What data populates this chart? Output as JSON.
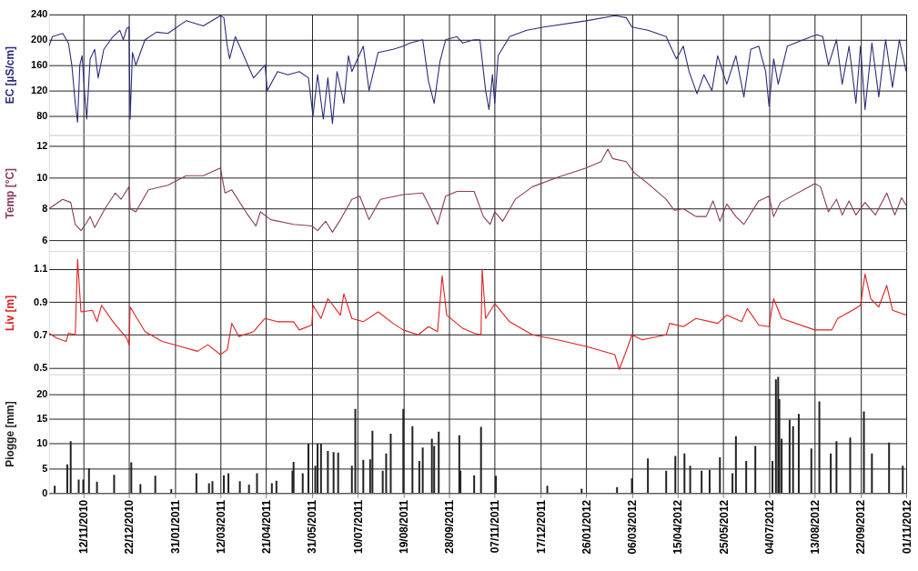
{
  "chart_data": [
    {
      "type": "line",
      "ylabel": "EC [µS/cm]",
      "xlim": [
        "2010-10-13",
        "2012-11-01"
      ],
      "ylim": [
        50,
        240
      ],
      "yticks": [
        80,
        120,
        160,
        200,
        240
      ],
      "grid": true,
      "tick_labels": "y",
      "xticks": [
        {
          "value": "2010-11-12",
          "label": null
        },
        {
          "value": "2010-12-22",
          "label": null
        },
        {
          "value": "2011-01-31",
          "label": null
        },
        {
          "value": "2011-03-12",
          "label": null
        },
        {
          "value": "2011-04-21",
          "label": null
        },
        {
          "value": "2011-05-31",
          "label": null
        },
        {
          "value": "2011-07-10",
          "label": null
        },
        {
          "value": "2011-08-19",
          "label": null
        },
        {
          "value": "2011-09-28",
          "label": null
        },
        {
          "value": "2011-11-07",
          "label": null
        },
        {
          "value": "2011-12-17",
          "label": null
        },
        {
          "value": "2012-01-26",
          "label": null
        },
        {
          "value": "2012-03-06",
          "label": null
        },
        {
          "value": "2012-04-15",
          "label": null
        },
        {
          "value": "2012-05-25",
          "label": null
        },
        {
          "value": "2012-07-04",
          "label": null
        },
        {
          "value": "2012-08-13",
          "label": null
        },
        {
          "value": "2012-09-22",
          "label": null
        },
        {
          "value": "2012-11-01",
          "label": null
        }
      ],
      "series": [
        {
          "color": "#2b2d7c",
          "x": [
            "2010-10-13",
            "2010-10-16",
            "2010-10-25",
            "2010-10-30",
            "2010-11-02",
            "2010-11-05",
            "2010-11-07",
            "2010-11-09",
            "2010-11-11",
            "2010-11-13",
            "2010-11-15",
            "2010-11-18",
            "2010-11-22",
            "2010-11-25",
            "2010-11-30",
            "2010-12-08",
            "2010-12-14",
            "2010-12-17",
            "2010-12-20",
            "2010-12-22",
            "2010-12-23",
            "2010-12-25",
            "2010-12-28",
            "2011-01-05",
            "2011-01-15",
            "2011-01-25",
            "2011-02-10",
            "2011-02-25",
            "2011-03-12",
            "2011-03-15",
            "2011-03-18",
            "2011-03-20",
            "2011-03-25",
            "2011-03-30",
            "2011-04-05",
            "2011-04-10",
            "2011-04-20",
            "2011-04-22",
            "2011-05-01",
            "2011-05-10",
            "2011-05-20",
            "2011-05-28",
            "2011-06-01",
            "2011-06-05",
            "2011-06-10",
            "2011-06-14",
            "2011-06-18",
            "2011-06-22",
            "2011-06-28",
            "2011-07-02",
            "2011-07-05",
            "2011-07-15",
            "2011-07-20",
            "2011-07-28",
            "2011-08-10",
            "2011-08-19",
            "2011-08-25",
            "2011-09-05",
            "2011-09-10",
            "2011-09-15",
            "2011-09-20",
            "2011-09-25",
            "2011-10-05",
            "2011-10-10",
            "2011-10-20",
            "2011-10-25",
            "2011-10-30",
            "2011-11-02",
            "2011-11-05",
            "2011-11-07",
            "2011-11-10",
            "2011-11-20",
            "2011-12-05",
            "2011-12-20",
            "2012-01-26",
            "2012-02-20",
            "2012-03-01",
            "2012-03-06",
            "2012-03-20",
            "2012-04-05",
            "2012-04-10",
            "2012-04-14",
            "2012-04-20",
            "2012-04-25",
            "2012-05-02",
            "2012-05-08",
            "2012-05-15",
            "2012-05-20",
            "2012-05-28",
            "2012-06-05",
            "2012-06-12",
            "2012-06-18",
            "2012-06-25",
            "2012-07-01",
            "2012-07-04",
            "2012-07-08",
            "2012-07-12",
            "2012-07-20",
            "2012-08-10",
            "2012-08-15",
            "2012-08-20",
            "2012-08-25",
            "2012-09-01",
            "2012-09-06",
            "2012-09-12",
            "2012-09-18",
            "2012-09-22",
            "2012-09-26",
            "2012-10-02",
            "2012-10-08",
            "2012-10-14",
            "2012-10-20",
            "2012-10-26",
            "2012-11-01"
          ],
          "values": [
            190,
            205,
            210,
            195,
            160,
            100,
            70,
            160,
            175,
            120,
            75,
            170,
            185,
            140,
            185,
            205,
            215,
            200,
            218,
            220,
            75,
            180,
            160,
            200,
            212,
            210,
            230,
            222,
            238,
            235,
            190,
            170,
            205,
            185,
            160,
            140,
            160,
            120,
            150,
            145,
            150,
            140,
            80,
            145,
            75,
            140,
            68,
            150,
            100,
            175,
            150,
            190,
            120,
            180,
            185,
            190,
            195,
            200,
            135,
            100,
            165,
            200,
            205,
            195,
            200,
            200,
            120,
            90,
            145,
            100,
            175,
            205,
            215,
            220,
            230,
            238,
            235,
            220,
            215,
            205,
            185,
            170,
            190,
            150,
            115,
            145,
            120,
            175,
            130,
            175,
            110,
            185,
            190,
            150,
            95,
            170,
            130,
            190,
            205,
            208,
            205,
            160,
            200,
            130,
            190,
            100,
            190,
            90,
            195,
            110,
            200,
            125,
            200,
            150
          ]
        }
      ]
    },
    {
      "type": "line",
      "ylabel": "Temp [°C]",
      "xlim": [
        "2010-10-13",
        "2012-11-01"
      ],
      "ylim": [
        5.3,
        12.7
      ],
      "yticks": [
        6,
        8,
        10,
        12
      ],
      "grid": true,
      "tick_labels": "y",
      "xticks": [
        {
          "value": "2010-11-12",
          "label": null
        },
        {
          "value": "2010-12-22",
          "label": null
        },
        {
          "value": "2011-01-31",
          "label": null
        },
        {
          "value": "2011-03-12",
          "label": null
        },
        {
          "value": "2011-04-21",
          "label": null
        },
        {
          "value": "2011-05-31",
          "label": null
        },
        {
          "value": "2011-07-10",
          "label": null
        },
        {
          "value": "2011-08-19",
          "label": null
        },
        {
          "value": "2011-09-28",
          "label": null
        },
        {
          "value": "2011-11-07",
          "label": null
        },
        {
          "value": "2011-12-17",
          "label": null
        },
        {
          "value": "2012-01-26",
          "label": null
        },
        {
          "value": "2012-03-06",
          "label": null
        },
        {
          "value": "2012-04-15",
          "label": null
        },
        {
          "value": "2012-05-25",
          "label": null
        },
        {
          "value": "2012-07-04",
          "label": null
        },
        {
          "value": "2012-08-13",
          "label": null
        },
        {
          "value": "2012-09-22",
          "label": null
        },
        {
          "value": "2012-11-01",
          "label": null
        }
      ],
      "series": [
        {
          "color": "#8b3a62",
          "x": [
            "2010-10-13",
            "2010-10-25",
            "2010-11-01",
            "2010-11-05",
            "2010-11-10",
            "2010-11-14",
            "2010-11-18",
            "2010-11-22",
            "2010-12-01",
            "2010-12-10",
            "2010-12-15",
            "2010-12-22",
            "2010-12-23",
            "2010-12-28",
            "2011-01-08",
            "2011-01-25",
            "2011-02-10",
            "2011-02-25",
            "2011-03-12",
            "2011-03-16",
            "2011-03-22",
            "2011-04-05",
            "2011-04-12",
            "2011-04-16",
            "2011-04-25",
            "2011-05-15",
            "2011-05-31",
            "2011-06-05",
            "2011-06-12",
            "2011-06-18",
            "2011-06-25",
            "2011-07-05",
            "2011-07-12",
            "2011-07-20",
            "2011-07-30",
            "2011-08-19",
            "2011-09-05",
            "2011-09-12",
            "2011-09-18",
            "2011-09-25",
            "2011-10-05",
            "2011-10-20",
            "2011-10-28",
            "2011-11-03",
            "2011-11-07",
            "2011-11-14",
            "2011-11-25",
            "2011-12-10",
            "2012-01-01",
            "2012-01-26",
            "2012-02-08",
            "2012-02-14",
            "2012-02-18",
            "2012-03-01",
            "2012-03-08",
            "2012-03-20",
            "2012-04-05",
            "2012-04-12",
            "2012-04-20",
            "2012-05-01",
            "2012-05-10",
            "2012-05-16",
            "2012-05-22",
            "2012-05-28",
            "2012-06-05",
            "2012-06-12",
            "2012-06-25",
            "2012-07-04",
            "2012-07-08",
            "2012-07-14",
            "2012-08-13",
            "2012-08-18",
            "2012-08-25",
            "2012-09-01",
            "2012-09-06",
            "2012-09-12",
            "2012-09-18",
            "2012-09-26",
            "2012-10-05",
            "2012-10-15",
            "2012-10-22",
            "2012-10-28",
            "2012-11-01"
          ],
          "values": [
            8.0,
            8.6,
            8.4,
            7.0,
            6.6,
            7.0,
            7.5,
            6.8,
            8.0,
            9.0,
            8.6,
            9.4,
            8.0,
            7.8,
            9.2,
            9.5,
            10.1,
            10.1,
            10.6,
            9.0,
            9.2,
            7.6,
            6.9,
            7.8,
            7.3,
            7.0,
            6.9,
            6.6,
            7.2,
            6.5,
            7.3,
            8.6,
            8.8,
            7.3,
            8.6,
            8.9,
            9.0,
            8.0,
            7.0,
            8.8,
            9.1,
            9.1,
            7.5,
            7.0,
            7.8,
            7.2,
            8.6,
            9.4,
            10.0,
            10.6,
            11.0,
            11.8,
            11.2,
            11.0,
            10.3,
            9.6,
            8.6,
            7.9,
            8.0,
            7.5,
            7.5,
            8.5,
            7.2,
            8.3,
            7.5,
            7.0,
            8.5,
            8.8,
            7.5,
            8.4,
            9.6,
            9.4,
            7.8,
            8.6,
            7.6,
            8.5,
            7.6,
            8.4,
            7.6,
            9.0,
            7.6,
            8.7,
            8.2
          ]
        }
      ]
    },
    {
      "type": "line",
      "ylabel": "Liv [m]",
      "xlim": [
        "2010-10-13",
        "2012-11-01"
      ],
      "ylim": [
        0.46,
        1.21
      ],
      "yticks": [
        0.5,
        0.7,
        0.9,
        1.1
      ],
      "grid": true,
      "tick_labels": "y",
      "xticks": [
        {
          "value": "2010-11-12",
          "label": null
        },
        {
          "value": "2010-12-22",
          "label": null
        },
        {
          "value": "2011-01-31",
          "label": null
        },
        {
          "value": "2011-03-12",
          "label": null
        },
        {
          "value": "2011-04-21",
          "label": null
        },
        {
          "value": "2011-05-31",
          "label": null
        },
        {
          "value": "2011-07-10",
          "label": null
        },
        {
          "value": "2011-08-19",
          "label": null
        },
        {
          "value": "2011-09-28",
          "label": null
        },
        {
          "value": "2011-11-07",
          "label": null
        },
        {
          "value": "2011-12-17",
          "label": null
        },
        {
          "value": "2012-01-26",
          "label": null
        },
        {
          "value": "2012-03-06",
          "label": null
        },
        {
          "value": "2012-04-15",
          "label": null
        },
        {
          "value": "2012-05-25",
          "label": null
        },
        {
          "value": "2012-07-04",
          "label": null
        },
        {
          "value": "2012-08-13",
          "label": null
        },
        {
          "value": "2012-09-22",
          "label": null
        },
        {
          "value": "2012-11-01",
          "label": null
        }
      ],
      "series": [
        {
          "color": "#e02020",
          "x": [
            "2010-10-13",
            "2010-10-20",
            "2010-10-28",
            "2010-10-30",
            "2010-11-05",
            "2010-11-07",
            "2010-11-10",
            "2010-11-20",
            "2010-11-24",
            "2010-11-28",
            "2010-12-08",
            "2010-12-20",
            "2010-12-22",
            "2010-12-23",
            "2011-01-05",
            "2011-01-20",
            "2011-02-05",
            "2011-02-20",
            "2011-03-01",
            "2011-03-12",
            "2011-03-18",
            "2011-03-22",
            "2011-03-28",
            "2011-04-10",
            "2011-04-20",
            "2011-05-01",
            "2011-05-15",
            "2011-05-20",
            "2011-05-31",
            "2011-06-01",
            "2011-06-08",
            "2011-06-14",
            "2011-06-25",
            "2011-06-28",
            "2011-07-05",
            "2011-07-15",
            "2011-07-28",
            "2011-08-10",
            "2011-08-19",
            "2011-09-01",
            "2011-09-10",
            "2011-09-18",
            "2011-09-22",
            "2011-09-26",
            "2011-10-10",
            "2011-10-20",
            "2011-10-26",
            "2011-10-27",
            "2011-10-30",
            "2011-11-07",
            "2011-11-20",
            "2011-12-10",
            "2012-01-01",
            "2012-01-26",
            "2012-02-20",
            "2012-02-24",
            "2012-03-02",
            "2012-03-06",
            "2012-03-15",
            "2012-04-05",
            "2012-04-08",
            "2012-04-20",
            "2012-05-01",
            "2012-05-20",
            "2012-05-28",
            "2012-06-10",
            "2012-06-15",
            "2012-06-25",
            "2012-07-04",
            "2012-07-08",
            "2012-07-15",
            "2012-08-13",
            "2012-08-28",
            "2012-09-02",
            "2012-09-15",
            "2012-09-22",
            "2012-09-26",
            "2012-10-01",
            "2012-10-08",
            "2012-10-15",
            "2012-10-20",
            "2012-11-01"
          ],
          "values": [
            0.71,
            0.68,
            0.66,
            0.71,
            0.7,
            1.16,
            0.84,
            0.85,
            0.78,
            0.88,
            0.78,
            0.68,
            0.64,
            0.87,
            0.72,
            0.66,
            0.63,
            0.6,
            0.64,
            0.58,
            0.61,
            0.77,
            0.69,
            0.72,
            0.8,
            0.78,
            0.78,
            0.73,
            0.76,
            0.88,
            0.8,
            0.92,
            0.82,
            0.95,
            0.8,
            0.78,
            0.84,
            0.77,
            0.73,
            0.7,
            0.75,
            0.72,
            1.06,
            0.82,
            0.74,
            0.71,
            0.7,
            1.1,
            0.8,
            0.89,
            0.78,
            0.7,
            0.67,
            0.63,
            0.58,
            0.49,
            0.62,
            0.7,
            0.67,
            0.7,
            0.77,
            0.75,
            0.8,
            0.77,
            0.82,
            0.78,
            0.86,
            0.76,
            0.75,
            0.92,
            0.8,
            0.73,
            0.73,
            0.8,
            0.85,
            0.88,
            1.07,
            0.92,
            0.87,
            1.0,
            0.85,
            0.82
          ]
        }
      ]
    },
    {
      "type": "bar",
      "ylabel": "Piogge [mm]",
      "xlim": [
        "2010-10-13",
        "2012-11-01"
      ],
      "ylim": [
        0,
        24
      ],
      "yticks": [
        0,
        5,
        10,
        15,
        20
      ],
      "grid": true,
      "xticks": [
        {
          "value": "2010-11-12",
          "label": "12/11/2010"
        },
        {
          "value": "2010-12-22",
          "label": "22/12/2010"
        },
        {
          "value": "2011-01-31",
          "label": "31/01/2011"
        },
        {
          "value": "2011-03-12",
          "label": "12/03/2011"
        },
        {
          "value": "2011-04-21",
          "label": "21/04/2011"
        },
        {
          "value": "2011-05-31",
          "label": "31/05/2011"
        },
        {
          "value": "2011-07-10",
          "label": "10/07/2011"
        },
        {
          "value": "2011-08-19",
          "label": "19/08/2011"
        },
        {
          "value": "2011-09-28",
          "label": "28/09/2011"
        },
        {
          "value": "2011-11-07",
          "label": "07/11/2011"
        },
        {
          "value": "2011-12-17",
          "label": "17/12/2011"
        },
        {
          "value": "2012-01-26",
          "label": "26/01/2012"
        },
        {
          "value": "2012-03-06",
          "label": "06/03/2012"
        },
        {
          "value": "2012-04-15",
          "label": "15/04/2012"
        },
        {
          "value": "2012-05-25",
          "label": "25/05/2012"
        },
        {
          "value": "2012-07-04",
          "label": "04/07/2012"
        },
        {
          "value": "2012-08-13",
          "label": "13/08/2012"
        },
        {
          "value": "2012-09-22",
          "label": "22/09/2012"
        },
        {
          "value": "2012-11-01",
          "label": "01/11/2012"
        }
      ],
      "series": [
        {
          "color": "#222222",
          "x": [
            "2010-10-18",
            "2010-10-29",
            "2010-11-01",
            "2010-11-08",
            "2010-11-12",
            "2010-11-17",
            "2010-11-24",
            "2010-12-09",
            "2010-12-24",
            "2011-01-01",
            "2011-01-14",
            "2011-01-28",
            "2011-02-19",
            "2011-03-02",
            "2011-03-05",
            "2011-03-15",
            "2011-03-19",
            "2011-03-29",
            "2011-04-06",
            "2011-04-13",
            "2011-04-26",
            "2011-04-30",
            "2011-05-14",
            "2011-05-15",
            "2011-05-23",
            "2011-05-28",
            "2011-06-03",
            "2011-06-05",
            "2011-06-08",
            "2011-06-14",
            "2011-06-19",
            "2011-06-23",
            "2011-07-05",
            "2011-07-08",
            "2011-07-15",
            "2011-07-21",
            "2011-07-23",
            "2011-08-01",
            "2011-08-04",
            "2011-08-08",
            "2011-08-19",
            "2011-08-27",
            "2011-09-02",
            "2011-09-05",
            "2011-09-13",
            "2011-09-15",
            "2011-09-19",
            "2011-10-07",
            "2011-10-08",
            "2011-10-20",
            "2011-10-26",
            "2011-11-08",
            "2011-12-23",
            "2012-01-22",
            "2012-02-22",
            "2012-03-06",
            "2012-03-20",
            "2012-04-05",
            "2012-04-13",
            "2012-04-21",
            "2012-04-26",
            "2012-05-06",
            "2012-05-13",
            "2012-05-22",
            "2012-06-02",
            "2012-06-05",
            "2012-06-14",
            "2012-06-22",
            "2012-07-07",
            "2012-07-10",
            "2012-07-12",
            "2012-07-13",
            "2012-07-15",
            "2012-07-22",
            "2012-07-25",
            "2012-07-30",
            "2012-08-10",
            "2012-08-17",
            "2012-08-27",
            "2012-09-01",
            "2012-09-13",
            "2012-09-25",
            "2012-10-02",
            "2012-10-17",
            "2012-10-29"
          ],
          "values": [
            1.5,
            5.8,
            10.5,
            2.7,
            2.7,
            5,
            2.3,
            3.7,
            6.2,
            1.8,
            3.5,
            0.8,
            4,
            2,
            2.4,
            3.6,
            4,
            2.4,
            1.7,
            4,
            2,
            2.5,
            4.5,
            6.3,
            4,
            10,
            5.5,
            10,
            10,
            8.5,
            8.3,
            8.2,
            5.5,
            17,
            6.7,
            6.8,
            12.6,
            4.5,
            8,
            12,
            17,
            13.5,
            6.5,
            9.2,
            11,
            9.5,
            12.4,
            11.7,
            4.5,
            3.6,
            13.4,
            3.5,
            1.5,
            0.9,
            1.2,
            3,
            7,
            4.5,
            7.5,
            8,
            5.5,
            4.5,
            4.7,
            7.2,
            4,
            11.5,
            6.5,
            9.5,
            6.5,
            23,
            23.5,
            19,
            11,
            14.8,
            13.5,
            16,
            9,
            18.5,
            8,
            10.5,
            11.2,
            16.5,
            8,
            10.2,
            5.5
          ]
        }
      ]
    }
  ]
}
